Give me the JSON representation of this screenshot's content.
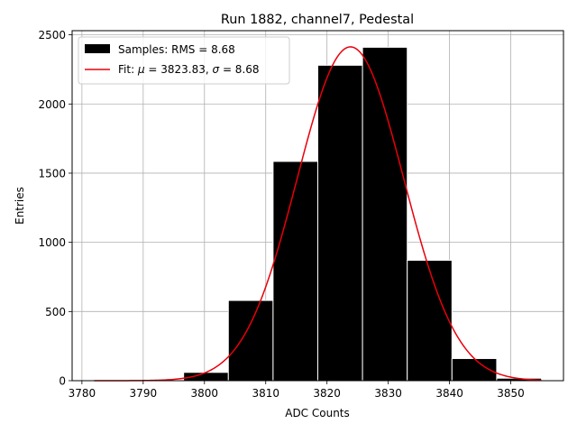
{
  "chart_data": {
    "type": "bar",
    "title": "Run 1882, channel7, Pedestal",
    "xlabel": "ADC Counts",
    "ylabel": "Entries",
    "xlim": [
      3778.4,
      3858.6
    ],
    "ylim": [
      0,
      2530
    ],
    "xticks": [
      3780,
      3790,
      3800,
      3810,
      3820,
      3830,
      3840,
      3850
    ],
    "yticks": [
      0,
      500,
      1000,
      1500,
      2000,
      2500
    ],
    "grid": true,
    "legend_position": "upper left",
    "histogram": {
      "name": "Samples: RMS = 8.68",
      "color": "#000000",
      "edge_color": "#ffffff",
      "bin_edges": [
        3782.0,
        3789.3,
        3796.6,
        3803.9,
        3811.2,
        3818.5,
        3825.8,
        3833.1,
        3840.4,
        3847.7,
        3855.0
      ],
      "counts": [
        0,
        0,
        60,
        580,
        1585,
        2280,
        2410,
        870,
        160,
        18
      ]
    },
    "fit": {
      "name_prefix": "Fit: ",
      "name_mu": "μ",
      "name_mid": " = 3823.83, ",
      "name_sigma": "σ",
      "name_suffix": " = 8.68",
      "color": "#e8000b",
      "mu": 3823.83,
      "sigma": 8.68,
      "amplitude": 2413,
      "x_range": [
        3782,
        3855
      ]
    }
  }
}
